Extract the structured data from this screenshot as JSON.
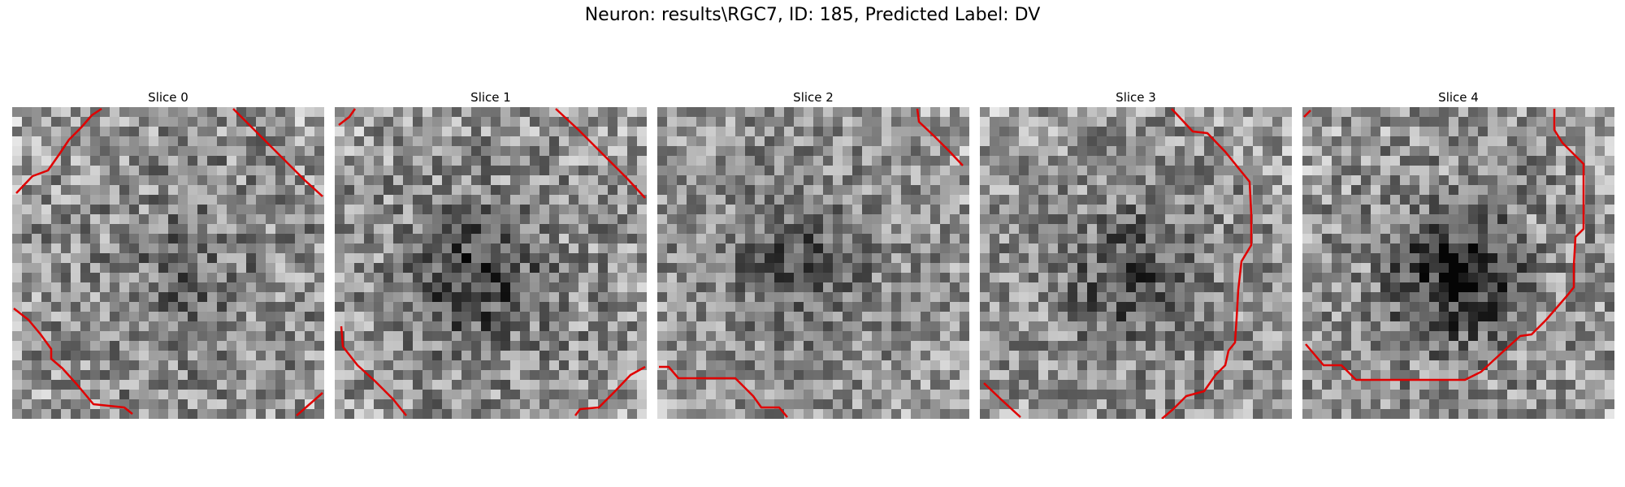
{
  "figure": {
    "title": "Neuron: results\\RGC7, ID: 185, Predicted Label: DV"
  },
  "colors": {
    "contour": "#e00000",
    "background": "#ffffff"
  },
  "slices": [
    {
      "title": "Slice 0",
      "seed": 11,
      "dark_center": [
        0.55,
        0.55
      ],
      "dark_strength": 0.15,
      "contrast": 1.0
    },
    {
      "title": "Slice 1",
      "seed": 23,
      "dark_center": [
        0.45,
        0.55
      ],
      "dark_strength": 0.35,
      "contrast": 1.0
    },
    {
      "title": "Slice 2",
      "seed": 37,
      "dark_center": [
        0.45,
        0.5
      ],
      "dark_strength": 0.25,
      "contrast": 0.9
    },
    {
      "title": "Slice 3",
      "seed": 41,
      "dark_center": [
        0.5,
        0.55
      ],
      "dark_strength": 0.3,
      "contrast": 0.95
    },
    {
      "title": "Slice 4",
      "seed": 53,
      "dark_center": [
        0.5,
        0.55
      ],
      "dark_strength": 0.45,
      "contrast": 1.0
    }
  ]
}
